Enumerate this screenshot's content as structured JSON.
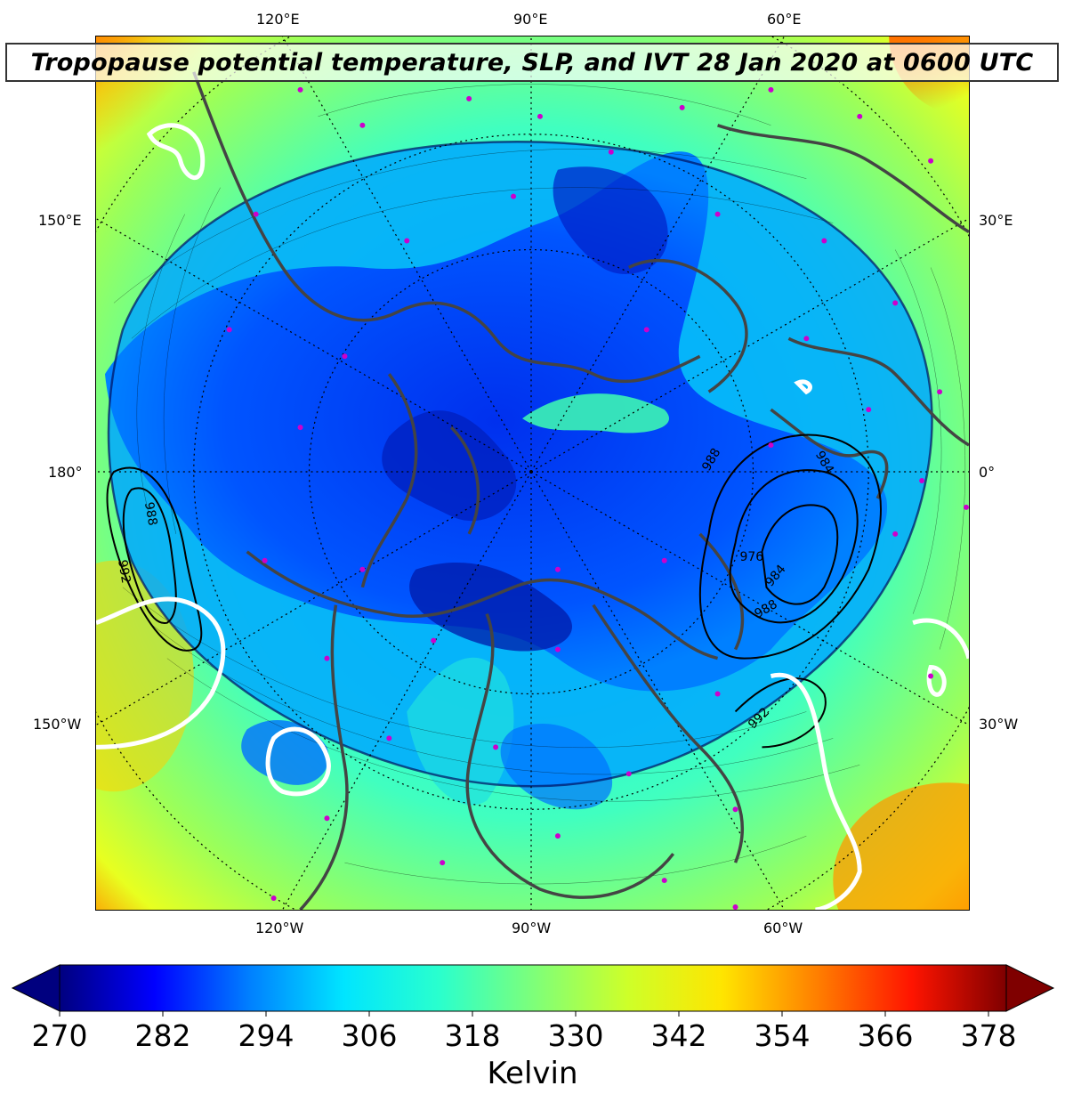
{
  "title": "Tropopause potential temperature, SLP, and IVT 28 Jan 2020 at 0600 UTC",
  "longitude_labels": {
    "top": [
      "120°E",
      "90°E",
      "60°E"
    ],
    "bottom": [
      "120°W",
      "90°W",
      "60°W"
    ],
    "left": [
      "150°E",
      "180°",
      "150°W"
    ],
    "right": [
      "30°E",
      "0°",
      "30°W"
    ]
  },
  "slp_contour_labels": [
    "988",
    "992",
    "984",
    "976",
    "984",
    "988",
    "992",
    "988",
    "992"
  ],
  "colorbar": {
    "ticks": [
      "270",
      "282",
      "294",
      "306",
      "318",
      "330",
      "342",
      "354",
      "366",
      "378"
    ],
    "label": "Kelvin",
    "colors": [
      "#00007f",
      "#0000ff",
      "#007fff",
      "#00e5ff",
      "#29ffce",
      "#7dff7a",
      "#ceff29",
      "#ffe500",
      "#ff7f00",
      "#ff1400",
      "#7f0000"
    ]
  },
  "colors": {
    "coastline": "#444444",
    "station_marker": "#cc00cc",
    "ivt_contour": "#ffffff",
    "slp_contour": "#000000"
  }
}
